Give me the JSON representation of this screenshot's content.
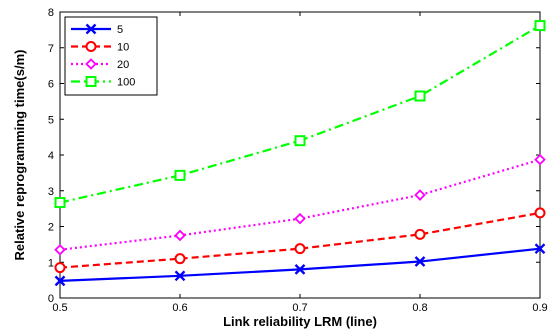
{
  "chart_data": {
    "type": "line",
    "xlabel": "Link reliability LRM (line)",
    "ylabel": "Relative reprogramming time(s/m)",
    "xlim": [
      0.5,
      0.9
    ],
    "ylim": [
      0,
      8
    ],
    "xticks": [
      "0.5",
      "0.6",
      "0.7",
      "0.8",
      "0.9"
    ],
    "yticks": [
      "0",
      "1",
      "2",
      "3",
      "4",
      "5",
      "6",
      "7",
      "8"
    ],
    "grid": false,
    "legend": "top-left",
    "x": [
      0.5,
      0.6,
      0.7,
      0.8,
      0.9
    ],
    "series": [
      {
        "name": "5",
        "values": [
          0.48,
          0.62,
          0.8,
          1.02,
          1.38
        ],
        "color": "#0000ff",
        "marker": "x",
        "linestyle": "solid"
      },
      {
        "name": "10",
        "values": [
          0.85,
          1.1,
          1.38,
          1.78,
          2.38
        ],
        "color": "#ff0000",
        "marker": "circle",
        "linestyle": "dashed"
      },
      {
        "name": "20",
        "values": [
          1.35,
          1.75,
          2.22,
          2.88,
          3.87
        ],
        "color": "#ff00ff",
        "marker": "diamond",
        "linestyle": "dotted"
      },
      {
        "name": "100",
        "values": [
          2.67,
          3.43,
          4.4,
          5.65,
          7.62
        ],
        "color": "#00ff00",
        "marker": "square",
        "linestyle": "dashdot"
      }
    ]
  }
}
